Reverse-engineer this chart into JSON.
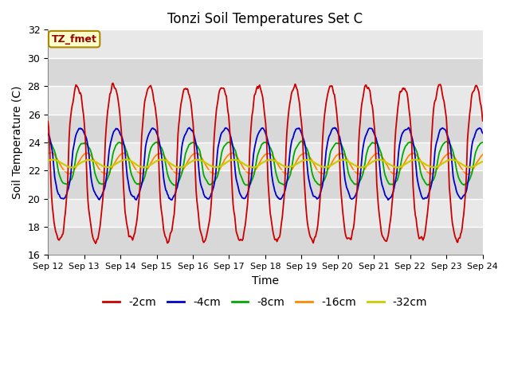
{
  "title": "Tonzi Soil Temperatures Set C",
  "xlabel": "Time",
  "ylabel": "Soil Temperature (C)",
  "ylim": [
    16,
    32
  ],
  "yticks": [
    16,
    18,
    20,
    22,
    24,
    26,
    28,
    30,
    32
  ],
  "colors": {
    "-2cm": "#cc0000",
    "-4cm": "#0000cc",
    "-8cm": "#00aa00",
    "-16cm": "#ff8800",
    "-32cm": "#cccc00"
  },
  "annotation_text": "TZ_fmet",
  "background_color": "#e8e8e8",
  "x_tick_labels": [
    "Sep 12",
    "Sep 13",
    "Sep 14",
    "Sep 15",
    "Sep 16",
    "Sep 17",
    "Sep 18",
    "Sep 19",
    "Sep 20",
    "Sep 21",
    "Sep 22",
    "Sep 23",
    "Sep 24"
  ]
}
